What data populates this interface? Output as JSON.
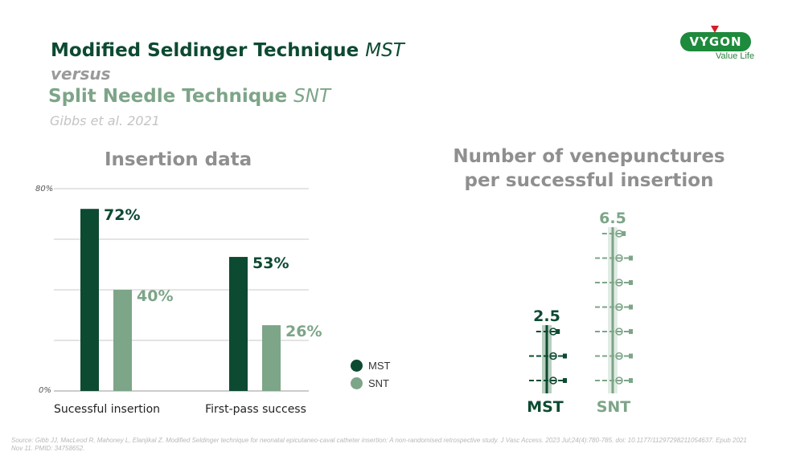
{
  "header": {
    "title_main": "Modified Seldinger Technique",
    "title_main_abbr": "MST",
    "versus": "versus",
    "title_second": "Split Needle Technique",
    "title_second_abbr": "SNT",
    "citation": "Gibbs et al. 2021"
  },
  "logo": {
    "name": "VYGON",
    "tagline": "Value Life"
  },
  "legend": {
    "mst": "MST",
    "snt": "SNT"
  },
  "colors": {
    "mst": "#0d4a32",
    "snt": "#7da588",
    "grid": "#c8c8c8",
    "snt_light": "#c9dccd"
  },
  "chart_data": [
    {
      "type": "bar",
      "title": "Insertion data",
      "categories": [
        "Sucessful insertion",
        "First-pass success"
      ],
      "series": [
        {
          "name": "MST",
          "values": [
            72,
            53
          ],
          "labels": [
            "72%",
            "53%"
          ]
        },
        {
          "name": "SNT",
          "values": [
            40,
            26
          ],
          "labels": [
            "40%",
            "26%"
          ]
        }
      ],
      "ylim": [
        0,
        80
      ],
      "y_tick_labels": [
        "0%",
        "80%"
      ],
      "grid": true,
      "legend": "right"
    },
    {
      "type": "bar",
      "title": "Number of venepunctures per successful insertion",
      "categories": [
        "MST",
        "SNT"
      ],
      "values": [
        2.5,
        6.5
      ],
      "labels": [
        "2.5",
        "6.5"
      ],
      "ylim": [
        0,
        7
      ],
      "icon": "needle-icon"
    }
  ],
  "source": "Source: Gibb JJ, MacLeod R, Mahoney L, Elanjikal Z. Modified Seldinger technique for neonatal epicutaneo-caval catheter insertion: A non-randomised retrospective study. J Vasc Access. 2023 Jul;24(4):780-785. doi: 10.1177/11297298211054637. Epub 2021 Nov 11. PMID: 34758652."
}
